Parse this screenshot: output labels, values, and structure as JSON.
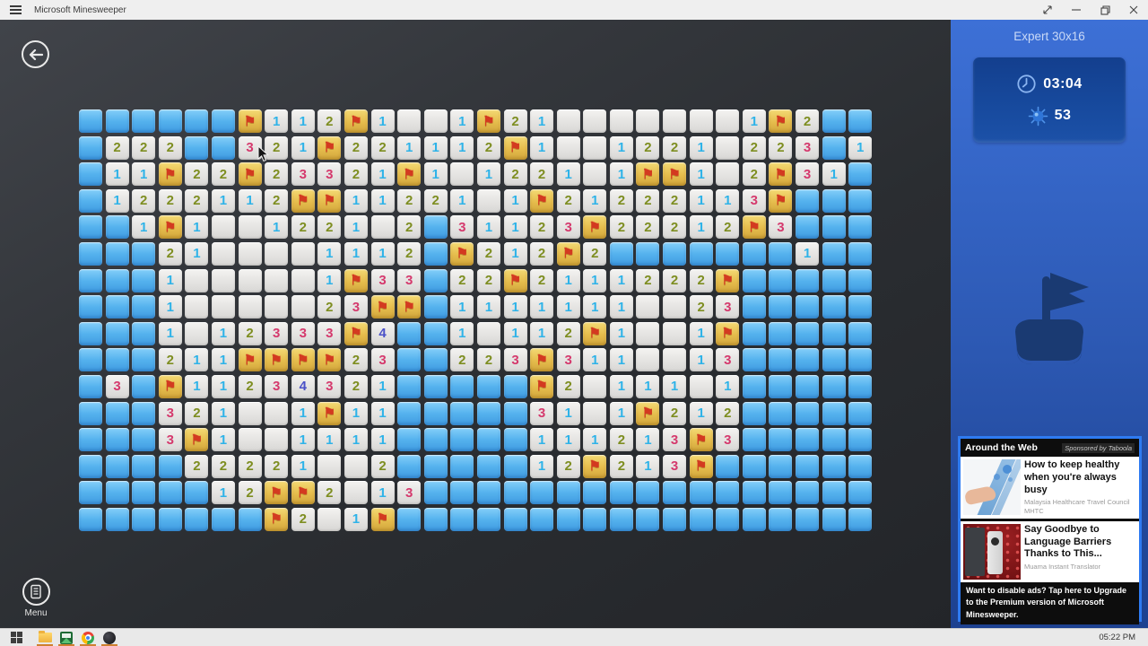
{
  "titlebar": {
    "title": "Microsoft Minesweeper"
  },
  "sidebar": {
    "mode_title": "Expert 30x16",
    "timer": "03:04",
    "mines_remaining": "53"
  },
  "game": {
    "menu_label": "Menu"
  },
  "board": {
    "cols": 30,
    "rows": 16,
    "legend": {
      "b": "unopened-tile",
      ".": "revealed-empty",
      "F": "flagged-tile",
      "1": "one adjacent mine",
      "2": "two adjacent mines",
      "3": "three adjacent mines",
      "4": "four adjacent mines"
    },
    "cells": [
      "bbbbbbF112F1..1F21.......1F2bb",
      "b222bb321F221112F1..1221.223b1",
      "b11F22F23321F1.1221.1FF1.2F31b",
      "b1222112FF11221.1F21222113Fbbb",
      "bb1F1..1221.2b31123F22212F3bbb",
      "bbb21....1112bF212F2bbbbbbb1bb",
      "bbb1.....1F33b22F2111222Fbbbbb",
      "bbb1.....23FFb1111111..23bbbbb",
      "bbb1.12333F4bb1.112F1..1Fbbbbb",
      "bbb211FFFF23bb223F311..13bbbbb",
      "b3bF11234321bbbbbF2.111.1bbbbb",
      "bbb321..1F11bbbbb31.1F212bbbbb",
      "bbb3F1..1111bbbbb111213F3bbbbb",
      "bbbb22221..2bbbbb12F213Fbbbbbb",
      "bbbbb12FF2.13bbbbbbbbbbbbbbbbb",
      "bbbbbbbF2.1Fbbbbbbbbbbbbbbbbbb"
    ]
  },
  "ad_panel": {
    "header": "Around the Web",
    "sponsor": "Sponsored by Taboola",
    "ads": [
      {
        "headline": "How to keep healthy when you're always busy",
        "source": "Malaysia Healthcare Travel Council  MHTC"
      },
      {
        "headline": "Say Goodbye to Language Barriers Thanks to This...",
        "source": "Muama Instant Translator"
      }
    ],
    "upgrade_notice": "Want to disable ads? Tap here to Upgrade to the Premium version of Microsoft Minesweeper."
  },
  "taskbar": {
    "clock": "05:22 PM"
  },
  "colors": {
    "one": "#2fb3e8",
    "two": "#7e8e21",
    "three": "#d5396d",
    "four": "#4a51c8",
    "flag": "#d33a20",
    "accent_blue": "#2e7bf2"
  }
}
